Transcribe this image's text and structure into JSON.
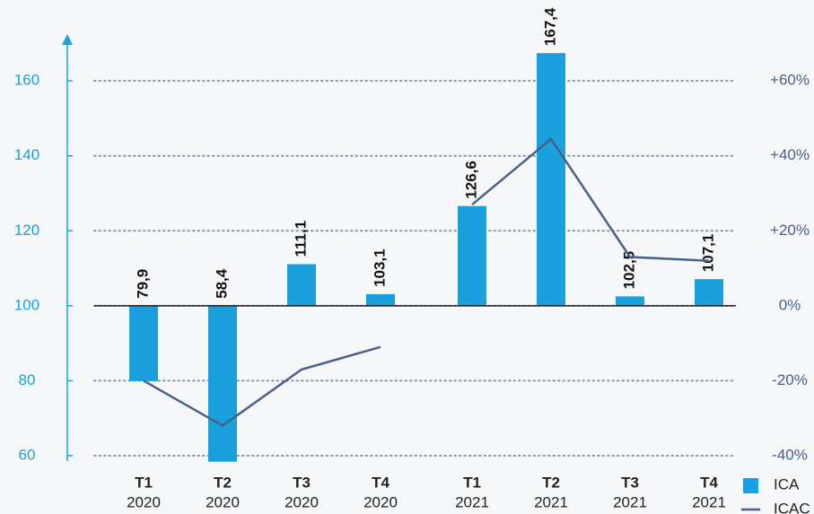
{
  "chart_data": {
    "type": "bar",
    "categories": [
      "T1",
      "T2",
      "T3",
      "T4",
      "T1",
      "T2",
      "T3",
      "T4"
    ],
    "years": [
      "2020",
      "2020",
      "2020",
      "2020",
      "2021",
      "2021",
      "2021",
      "2021"
    ],
    "series": [
      {
        "name": "ICA",
        "type": "bar",
        "color": "#1aa0dc",
        "values": [
          79.9,
          58.4,
          111.1,
          103.1,
          126.6,
          167.4,
          102.5,
          107.1
        ],
        "value_labels": [
          "79,9",
          "58,4",
          "111,1",
          "103,1",
          "126,6",
          "167,4",
          "102,5",
          "107,1"
        ]
      },
      {
        "name": "ICAC",
        "type": "line",
        "axis": "y2",
        "color": "#4a5f8a",
        "values": [
          -20,
          -32,
          -17,
          -11,
          27,
          44.5,
          13,
          12
        ]
      }
    ],
    "ylim": [
      60,
      172
    ],
    "yticks": [
      60,
      80,
      100,
      120,
      140,
      160
    ],
    "y2lim": [
      -40,
      72
    ],
    "y2ticks": [
      {
        "value": -40,
        "label": "-40%"
      },
      {
        "value": -20,
        "label": "-20%"
      },
      {
        "value": 0,
        "label": "0%"
      },
      {
        "value": 20,
        "label": "+20%"
      },
      {
        "value": 40,
        "label": "+40%"
      },
      {
        "value": 60,
        "label": "+60%"
      }
    ],
    "bar_base": 100,
    "grid": true
  }
}
